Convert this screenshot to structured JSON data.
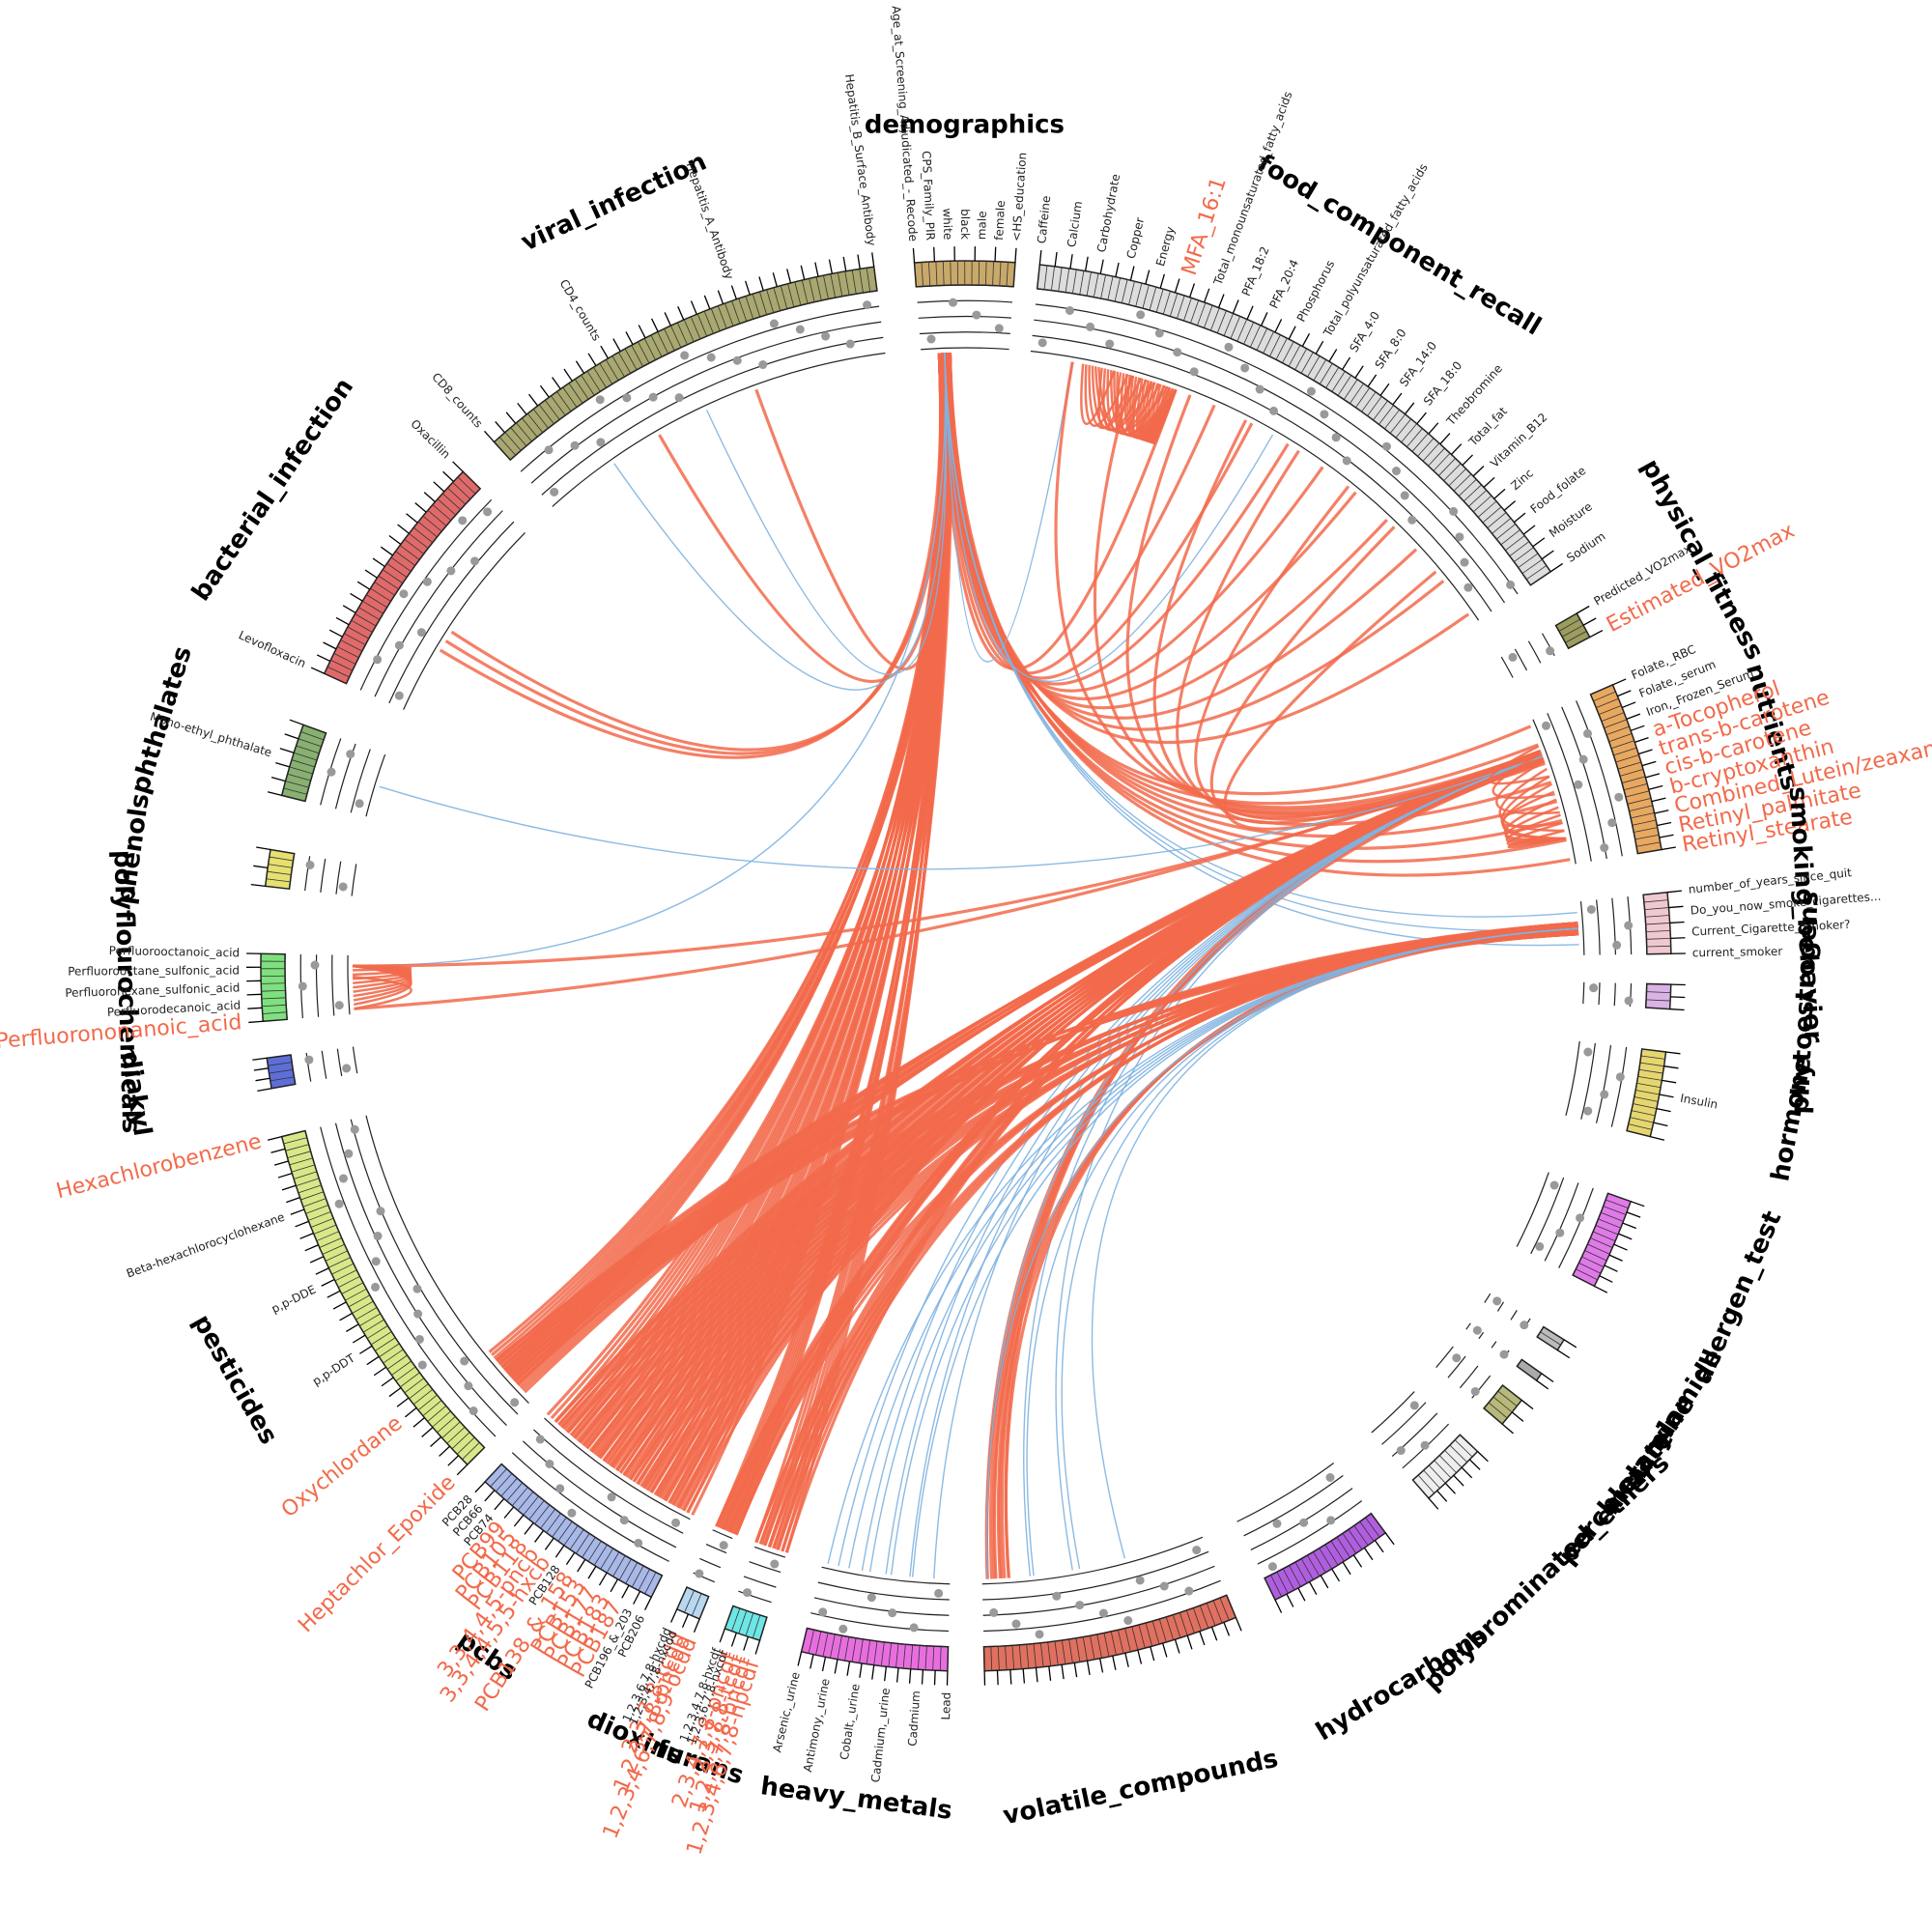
{
  "colors": {
    "positive": "#f26a4b",
    "negative": "#7fb3e0",
    "dot": "#999999",
    "track": "#222222"
  },
  "groups": [
    {
      "name": "demographics",
      "color": "#c9a96a",
      "start": -4.2,
      "end": 4.0,
      "ticks": 5,
      "labels": [
        "Age_at_Screening_Adjudicated_-_Recode",
        "CPS_Family_PIR",
        "white",
        "black",
        "male",
        "female",
        "<HS_education"
      ],
      "dots": []
    },
    {
      "name": "food_component_recall",
      "color": "#dddddd",
      "start": 6.0,
      "end": 56.0,
      "ticks": 40,
      "labels": [
        "Caffeine",
        "Calcium",
        "Carbohydrate",
        "Copper",
        "Energy",
        "MFA_16:1",
        "Total_monounsaturated_fatty_acids",
        "PFA_18:2",
        "PFA_20:4",
        "Phosphorus",
        "Total_polyunsaturated_fatty_acids",
        "SFA_4:0",
        "SFA_8:0",
        "SFA_14:0",
        "SFA_18:0",
        "Theobromine",
        "Total_fat",
        "Vitamin_B12",
        "Zinc",
        "Food_folate",
        "Moisture",
        "Sodium"
      ],
      "dots": [
        8,
        10,
        11,
        13,
        14,
        15,
        16,
        18,
        20,
        22,
        24,
        26,
        28,
        30,
        33,
        36,
        40,
        45,
        50
      ]
    },
    {
      "name": "physical_fitness",
      "color": "#9c9c5e",
      "start": 60.0,
      "end": 62.2,
      "ticks": 2,
      "labels": [
        "Predicted_VO2max",
        "Estimated_VO2max"
      ],
      "dots": []
    },
    {
      "name": "nutrients",
      "color": "#e8a860",
      "start": 66.5,
      "end": 80.5,
      "ticks": 14,
      "labels": [
        "Folate,_RBC",
        "Folate,_serum",
        "Iron,_Frozen_Serum",
        "a-Tocopherol",
        "trans-b-carotene",
        "cis-b-carotene",
        "b-cryptoxanthin",
        "Combined_Lutein/zeaxanthin",
        "Retinyl_palmitate",
        "Retinyl_stearate"
      ],
      "dots": []
    },
    {
      "name": "smoking_behavior",
      "color": "#f0c8d0",
      "start": 84.0,
      "end": 89.0,
      "ticks": 4,
      "labels": [
        "number_of_years_since_quit",
        "Do_you_now_smoke_cigarettes...",
        "Current_Cigarette_Smoker?",
        "current_smoker"
      ],
      "dots": []
    },
    {
      "name": "phytoestrogens",
      "color": "#d9b3e6",
      "start": 91.5,
      "end": 93.5,
      "ticks": 2,
      "labels": [],
      "dots": []
    },
    {
      "name": "hormone",
      "color": "#e6d670",
      "start": 97.0,
      "end": 104.0,
      "ticks": 6,
      "labels": [
        "Insulin"
      ],
      "dots": []
    },
    {
      "name": "allergen_test",
      "color": "#e07ae8",
      "start": 109.5,
      "end": 117.0,
      "ticks": 8,
      "labels": [],
      "dots": []
    },
    {
      "name": "acrylamide",
      "color": "#bbbbbb",
      "start": 122.0,
      "end": 123.0,
      "ticks": 1,
      "labels": [],
      "dots": []
    },
    {
      "name": "melamine",
      "color": "#aaaaaa",
      "start": 125.3,
      "end": 126.0,
      "ticks": 1,
      "labels": [],
      "dots": []
    },
    {
      "name": "perchlorate",
      "color": "#b8b87a",
      "start": 128.0,
      "end": 130.5,
      "ticks": 2,
      "labels": [],
      "dots": []
    },
    {
      "name": "polybrominated_ethers",
      "color": "#eeeeee",
      "start": 133.5,
      "end": 139.0,
      "ticks": 6,
      "labels": [],
      "dots": []
    },
    {
      "name": "hydrocarbons",
      "color": "#b05ee0",
      "start": 143.5,
      "end": 154.0,
      "ticks": 10,
      "labels": [],
      "dots": []
    },
    {
      "name": "volatile_compounds",
      "color": "#e07060",
      "start": 157.5,
      "end": 178.5,
      "ticks": 20,
      "labels": [],
      "dots": []
    },
    {
      "name": "heavy_metals",
      "color": "#e86ee0",
      "start": 181.5,
      "end": 193.5,
      "ticks": 12,
      "labels": [
        "Lead",
        "Cadmium",
        "Cadmium,_urine",
        "Cobalt,_urine",
        "Antimony,_urine",
        "Arsenic,_urine"
      ],
      "dots": []
    },
    {
      "name": "furans",
      "color": "#6ee6e6",
      "start": 197.0,
      "end": 200.0,
      "ticks": 3,
      "labels": [
        "1,2,3,4,6,7,8-hpcdf",
        "1,2,3,7,8-pncdf",
        "2,3,7,8-tcdf",
        "2,3,4,7,8-pncdf",
        "1,2,3,6,7,8-hxcdf",
        "1,2,3,4,7,8-hxcdf"
      ],
      "dots": []
    },
    {
      "name": "dioxins",
      "color": "#b8d8f0",
      "start": 202.2,
      "end": 204.2,
      "ticks": 2,
      "labels": [
        "1,2,3,4,6,7,8,9-ocdd",
        "1,2,3,7,8-pncdd",
        "2,3,7,8-tcdd",
        "1,2,3,4,7,8-hxcdd",
        "1,2,3,6,7,8-hxcdd"
      ],
      "dots": []
    },
    {
      "name": "pcbs",
      "color": "#a8b8e8",
      "start": 206.5,
      "end": 223.0,
      "ticks": 16,
      "labels": [
        "PCB206",
        "PCB196_&_203",
        "PCB187",
        "PCB183",
        "PCB177",
        "PCB153",
        "PCB138_&_158",
        "PCB128",
        "3,3,4,4,5,5-hxcb",
        "3,3,4,4,5-pncb",
        "PCB118",
        "PCB105",
        "PCB99",
        "PCB74",
        "PCB66",
        "PCB28"
      ],
      "dots": []
    },
    {
      "name": "pesticides",
      "color": "#d8e888",
      "start": 225.0,
      "end": 256.0,
      "ticks": 30,
      "labels": [
        "Heptachlor_Epoxide",
        "Oxychlordane",
        "p,p-DDT",
        "p,p-DDE",
        "Beta-hexachlorocyclohexane",
        "Hexachlorobenzene"
      ],
      "dots": []
    },
    {
      "name": "diakyl",
      "color": "#5e6ed8",
      "start": 260.0,
      "end": 262.5,
      "ticks": 3,
      "labels": [],
      "dots": []
    },
    {
      "name": "polyflourochemicals",
      "color": "#7ee07e",
      "start": 265.5,
      "end": 271.0,
      "ticks": 5,
      "labels": [
        "Perfluorononanoic_acid",
        "Perfluorodecanoic_acid",
        "Perfluorohexane_sulfonic_acid",
        "Perfluorooctane_sulfonic_acid",
        "Perfluorooctanoic_acid"
      ],
      "dots": []
    },
    {
      "name": "phenols",
      "color": "#e6e070",
      "start": 276.5,
      "end": 279.5,
      "ticks": 2,
      "labels": [],
      "dots": []
    },
    {
      "name": "phthalates",
      "color": "#88b070",
      "start": 284.0,
      "end": 290.0,
      "ticks": 5,
      "labels": [
        "Mono-ethyl_phthalate"
      ],
      "dots": []
    },
    {
      "name": "bacterial_infection",
      "color": "#e06a6a",
      "start": 294.5,
      "end": 314.5,
      "ticks": 18,
      "labels": [
        "Levofloxacin",
        "Oxacillin"
      ],
      "dots": []
    },
    {
      "name": "viral_infection",
      "color": "#a8a870",
      "start": 318.0,
      "end": 352.5,
      "ticks": 30,
      "labels": [
        "CD8_counts",
        "CD4_counts",
        "Hepatitis_A_Antibody",
        "Hepatitis_B_Surface_Antibody"
      ],
      "dots": []
    }
  ],
  "labels": {
    "demographics": [
      "Age_at_Screening_Adjudicated_-_Recode",
      "CPS_Family_PIR",
      "white",
      "black",
      "male",
      "female",
      "<HS_education"
    ],
    "food_component_recall": [
      "Caffeine",
      "Calcium",
      "Carbohydrate",
      "Copper",
      "Energy",
      "MFA_16:1",
      "Total_monounsaturated_fatty_acids",
      "PFA_18:2",
      "PFA_20:4",
      "Phosphorus",
      "Total_polyunsaturated_fatty_acids",
      "SFA_4:0",
      "SFA_8:0",
      "SFA_14:0",
      "SFA_18:0",
      "Theobromine",
      "Total_fat",
      "Vitamin_B12",
      "Zinc",
      "Food_folate",
      "Moisture",
      "Sodium"
    ],
    "physical_fitness": [
      "Predicted_VO2max",
      "Estimated_VO2max"
    ],
    "nutrients": [
      "Folate,_RBC",
      "Folate,_serum",
      "Iron,_Frozen_Serum",
      "a-Tocopherol",
      "trans-b-carotene",
      "cis-b-carotene",
      "b-cryptoxanthin",
      "Combined_Lutein/zeaxanthin",
      "Retinyl_palmitate",
      "Retinyl_stearate"
    ],
    "smoking_behavior": [
      "number_of_years_since_quit",
      "Do_you_now_smoke_cigarettes...",
      "Current_Cigarette_Smoker?",
      "current_smoker"
    ],
    "hormone": [
      "Insulin"
    ],
    "heavy_metals": [
      "Lead",
      "Cadmium",
      "Cadmium,_urine",
      "Cobalt,_urine",
      "Antimony,_urine",
      "Arsenic,_urine"
    ],
    "furans": [
      "1,2,3,4,6,7,8-hpcdf",
      "1,2,3,7,8-pncdf",
      "2,3,7,8-tcdf",
      "2,3,4,7,8-pncdf",
      "1,2,3,6,7,8-hxcdf",
      "1,2,3,4,7,8-hxcdf"
    ],
    "dioxins": [
      "1,2,3,4,6,7,8,9-ocdd",
      "1,2,3,7,8-pncdd",
      "2,3,7,8-tcdd",
      "1,2,3,4,7,8-hxcdd",
      "1,2,3,6,7,8-hxcdd"
    ],
    "pcbs": [
      "PCB206",
      "PCB196_&_203",
      "PCB187",
      "PCB183",
      "PCB177",
      "PCB153",
      "PCB138_&_158",
      "PCB128",
      "3,3,4,4,5,5-hxcb",
      "3,3,4,4,5-pncb",
      "PCB118",
      "PCB105",
      "PCB99",
      "PCB74",
      "PCB66",
      "PCB28"
    ],
    "pesticides": [
      "Heptachlor_Epoxide",
      "Oxychlordane",
      "p,p-DDT",
      "p,p-DDE",
      "Beta-hexachlorocyclohexane",
      "Hexachlorobenzene"
    ],
    "polyflourochemicals": [
      "Perfluorononanoic_acid",
      "Perfluorodecanoic_acid",
      "Perfluorohexane_sulfonic_acid",
      "Perfluorooctane_sulfonic_acid",
      "Perfluorooctanoic_acid"
    ],
    "phthalates": [
      "Mono-ethyl_phthalate"
    ],
    "bacterial_infection": [
      "Levofloxacin",
      "Oxacillin"
    ],
    "viral_infection": [
      "CD8_counts",
      "CD4_counts",
      "Hepatitis_A_Antibody",
      "Hepatitis_B_Surface_Antibody"
    ]
  },
  "highlighted_variables": [
    "MFA_16:1",
    "Estimated_VO2max",
    "a-Tocopherol",
    "trans-b-carotene",
    "cis-b-carotene",
    "b-cryptoxanthin",
    "Combined_Lutein/zeaxanthin",
    "Retinyl_palmitate",
    "Retinyl_stearate",
    "Perfluorononanoic_acid",
    "Heptachlor_Epoxide",
    "Oxychlordane",
    "Hexachlorobenzene",
    "PCB187",
    "PCB183",
    "PCB177",
    "PCB153",
    "PCB138_&_158",
    "3,3,4,4,5,5-hxcb",
    "3,3,4,4,5-pncb",
    "PCB118",
    "PCB105",
    "PCB99",
    "1,2,3,4,6,7,8,9-ocdd",
    "1,2,3,7,8-pncdd",
    "2,3,7,8-tcdd",
    "1,2,3,4,6,7,8-hpcdf",
    "1,2,3,7,8-pncdf",
    "2,3,7,8-tcdf",
    "2,3,4,7,8-pncdf"
  ],
  "chart_data": {
    "type": "chord",
    "hubs": [
      {
        "group": "demographics",
        "pos": -2.0,
        "targets": [
          {
            "group": "pcbs",
            "from": 206.5,
            "to": 223,
            "n": 35
          },
          {
            "group": "pesticides",
            "from": 227,
            "to": 231,
            "n": 12
          },
          {
            "group": "dioxins",
            "from": 202,
            "to": 204,
            "n": 8
          },
          {
            "group": "furans",
            "from": 197,
            "to": 200,
            "n": 8
          },
          {
            "group": "bacterial_infection",
            "from": 301,
            "to": 303,
            "n": 3
          },
          {
            "group": "food_component_recall",
            "from": 20,
            "to": 55,
            "n": 10
          },
          {
            "group": "nutrients",
            "from": 67,
            "to": 80,
            "n": 8
          },
          {
            "group": "viral_infection",
            "from": 330,
            "to": 340,
            "n": 2
          }
        ],
        "negative": [
          {
            "group": "viral_infection",
            "from": 325,
            "to": 335,
            "n": 2
          },
          {
            "group": "smoking_behavior",
            "from": 85,
            "to": 88,
            "n": 3
          },
          {
            "group": "food_component_recall",
            "from": 10,
            "to": 30,
            "n": 2
          },
          {
            "group": "polyflourochemicals",
            "from": 269,
            "to": 271,
            "n": 1
          }
        ]
      },
      {
        "group": "nutrients",
        "pos": 70.0,
        "targets": [
          {
            "group": "pcbs",
            "from": 207,
            "to": 222,
            "n": 40
          },
          {
            "group": "pesticides",
            "from": 226,
            "to": 230,
            "n": 15
          },
          {
            "group": "dioxins",
            "from": 202,
            "to": 204,
            "n": 8
          },
          {
            "group": "furans",
            "from": 197,
            "to": 200,
            "n": 8
          },
          {
            "group": "volatile_compounds",
            "from": 176,
            "to": 178,
            "n": 6
          },
          {
            "group": "food_component_recall",
            "from": 10,
            "to": 50,
            "n": 8
          },
          {
            "group": "polyflourochemicals",
            "from": 266,
            "to": 270,
            "n": 2
          }
        ],
        "negative": [
          {
            "group": "heavy_metals",
            "from": 183,
            "to": 192,
            "n": 5
          },
          {
            "group": "volatile_compounds",
            "from": 170,
            "to": 178,
            "n": 3
          },
          {
            "group": "phthalates",
            "from": 285,
            "to": 289,
            "n": 1
          }
        ]
      },
      {
        "group": "smoking_behavior",
        "pos": 86.5,
        "targets": [
          {
            "group": "pcbs",
            "from": 208,
            "to": 222,
            "n": 20
          },
          {
            "group": "pesticides",
            "from": 227,
            "to": 230,
            "n": 8
          },
          {
            "group": "dioxins",
            "from": 202,
            "to": 204,
            "n": 4
          },
          {
            "group": "furans",
            "from": 198,
            "to": 200,
            "n": 4
          },
          {
            "group": "volatile_compounds",
            "from": 176,
            "to": 178,
            "n": 4
          }
        ],
        "negative": [
          {
            "group": "heavy_metals",
            "from": 185,
            "to": 193,
            "n": 5
          },
          {
            "group": "volatile_compounds",
            "from": 165,
            "to": 178,
            "n": 4
          }
        ]
      }
    ],
    "intra": [
      {
        "group": "food_component_recall",
        "from": 11,
        "to": 20,
        "n": 30
      },
      {
        "group": "nutrients",
        "from": 69,
        "to": 78,
        "n": 12
      },
      {
        "group": "polyflourochemicals",
        "from": 266,
        "to": 270,
        "n": 10
      }
    ]
  }
}
